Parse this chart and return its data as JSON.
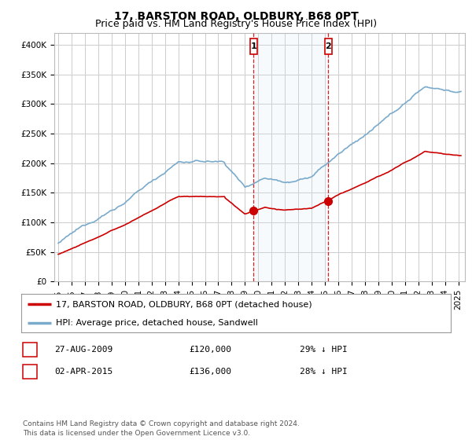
{
  "title": "17, BARSTON ROAD, OLDBURY, B68 0PT",
  "subtitle": "Price paid vs. HM Land Registry's House Price Index (HPI)",
  "ylim": [
    0,
    420000
  ],
  "yticks": [
    0,
    50000,
    100000,
    150000,
    200000,
    250000,
    300000,
    350000,
    400000
  ],
  "ytick_labels": [
    "£0",
    "£50K",
    "£100K",
    "£150K",
    "£200K",
    "£250K",
    "£300K",
    "£350K",
    "£400K"
  ],
  "xlim_start": 1994.7,
  "xlim_end": 2025.5,
  "background_color": "#ffffff",
  "plot_bg_color": "#ffffff",
  "grid_color": "#cccccc",
  "red_line_color": "#cc0000",
  "blue_line_color": "#7aaacc",
  "blue_fill_color": "#d0e8f8",
  "transaction1_x": 2009.65,
  "transaction1_price": 120000,
  "transaction1_label": "1",
  "transaction2_x": 2015.25,
  "transaction2_price": 136000,
  "transaction2_label": "2",
  "legend_line1": "17, BARSTON ROAD, OLDBURY, B68 0PT (detached house)",
  "legend_line2": "HPI: Average price, detached house, Sandwell",
  "table_row1": [
    "1",
    "27-AUG-2009",
    "£120,000",
    "29% ↓ HPI"
  ],
  "table_row2": [
    "2",
    "02-APR-2015",
    "£136,000",
    "28% ↓ HPI"
  ],
  "footer": "Contains HM Land Registry data © Crown copyright and database right 2024.\nThis data is licensed under the Open Government Licence v3.0.",
  "title_fontsize": 10,
  "subtitle_fontsize": 9,
  "tick_fontsize": 7.5,
  "legend_fontsize": 8,
  "table_fontsize": 8,
  "footer_fontsize": 6.5
}
